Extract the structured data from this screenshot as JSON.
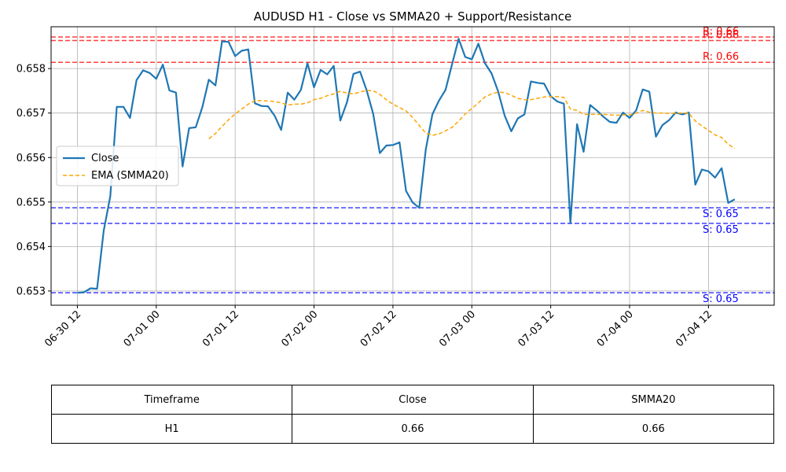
{
  "chart_data": {
    "type": "line",
    "title": "AUDUSD H1 - Close vs SMMA20 + Support/Resistance",
    "xlabel": "",
    "ylabel": "",
    "x_tick_labels": [
      "06-30 12",
      "07-01 00",
      "07-01 12",
      "07-02 00",
      "07-02 12",
      "07-03 00",
      "07-03 12",
      "07-04 00",
      "07-04 12"
    ],
    "y_ticks": [
      0.653,
      0.654,
      0.655,
      0.656,
      0.657,
      0.658
    ],
    "y_tick_labels": [
      "0.653",
      "0.654",
      "0.655",
      "0.656",
      "0.657",
      "0.658"
    ],
    "ylim": [
      0.65268,
      0.65894
    ],
    "x_range_hours": [
      -4,
      106
    ],
    "grid": true,
    "legend_position": "center-left",
    "series": [
      {
        "name": "Close",
        "color": "#1f77b4",
        "style": "solid",
        "start_hour": 0,
        "values": [
          0.65296,
          0.65297,
          0.65306,
          0.65305,
          0.65435,
          0.65513,
          0.65714,
          0.65714,
          0.65689,
          0.65774,
          0.65796,
          0.6579,
          0.65777,
          0.65809,
          0.65751,
          0.65746,
          0.6558,
          0.65666,
          0.65668,
          0.65713,
          0.65775,
          0.65762,
          0.65861,
          0.6586,
          0.65828,
          0.6584,
          0.65843,
          0.65722,
          0.65716,
          0.65715,
          0.65694,
          0.65662,
          0.65746,
          0.6573,
          0.65752,
          0.65812,
          0.65758,
          0.65797,
          0.65787,
          0.65806,
          0.65683,
          0.65724,
          0.65788,
          0.65793,
          0.65751,
          0.65698,
          0.6561,
          0.65627,
          0.65628,
          0.65634,
          0.65525,
          0.65499,
          0.65487,
          0.65618,
          0.65697,
          0.65728,
          0.65752,
          0.6581,
          0.65867,
          0.65826,
          0.65821,
          0.65856,
          0.65812,
          0.65789,
          0.65749,
          0.65694,
          0.65659,
          0.65688,
          0.65697,
          0.65771,
          0.65768,
          0.65766,
          0.65738,
          0.65726,
          0.65721,
          0.65452,
          0.65675,
          0.65613,
          0.65718,
          0.65706,
          0.65692,
          0.6568,
          0.65678,
          0.65701,
          0.65689,
          0.65706,
          0.65753,
          0.65748,
          0.65647,
          0.65673,
          0.65684,
          0.65701,
          0.65697,
          0.65701,
          0.65539,
          0.65573,
          0.65569,
          0.65555,
          0.65576,
          0.65498,
          0.65506
        ]
      },
      {
        "name": "EMA (SMMA20)",
        "color": "#ffa500",
        "style": "dashed",
        "start_hour": 20,
        "values": [
          0.65642,
          0.65654,
          0.6567,
          0.65685,
          0.65698,
          0.65709,
          0.6572,
          0.65728,
          0.65728,
          0.65727,
          0.65726,
          0.65723,
          0.65718,
          0.6572,
          0.6572,
          0.65723,
          0.6573,
          0.65733,
          0.65739,
          0.65743,
          0.65749,
          0.65745,
          0.65743,
          0.65747,
          0.65751,
          0.6575,
          0.65742,
          0.6573,
          0.6572,
          0.65712,
          0.65705,
          0.6569,
          0.65672,
          0.65655,
          0.6565,
          0.65653,
          0.6566,
          0.65668,
          0.65682,
          0.65698,
          0.6571,
          0.65723,
          0.65736,
          0.65743,
          0.65747,
          0.65746,
          0.6574,
          0.65733,
          0.6573,
          0.6573,
          0.65733,
          0.65736,
          0.65737,
          0.65737,
          0.65735,
          0.65709,
          0.65706,
          0.65697,
          0.65697,
          0.65697,
          0.65697,
          0.65696,
          0.65695,
          0.65696,
          0.65696,
          0.657,
          0.65706,
          0.65702,
          0.657,
          0.657,
          0.65699,
          0.657,
          0.657,
          0.657,
          0.65682,
          0.65671,
          0.65661,
          0.65651,
          0.65645,
          0.6563,
          0.6562
        ]
      }
    ],
    "resistance_levels": [
      {
        "value": 0.65871,
        "label": "R: 0.66",
        "color": "#ff0000"
      },
      {
        "value": 0.65863,
        "label": "R: 0.66",
        "color": "#ff0000"
      },
      {
        "value": 0.65814,
        "label": "R: 0.66",
        "color": "#ff0000"
      }
    ],
    "support_levels": [
      {
        "value": 0.65487,
        "label": "S: 0.65",
        "color": "#0000ff"
      },
      {
        "value": 0.65452,
        "label": "S: 0.65",
        "color": "#0000ff"
      },
      {
        "value": 0.65296,
        "label": "S: 0.65",
        "color": "#0000ff"
      }
    ]
  },
  "table": {
    "headers": [
      "Timeframe",
      "Close",
      "SMMA20"
    ],
    "rows": [
      [
        "H1",
        "0.66",
        "0.66"
      ]
    ]
  }
}
